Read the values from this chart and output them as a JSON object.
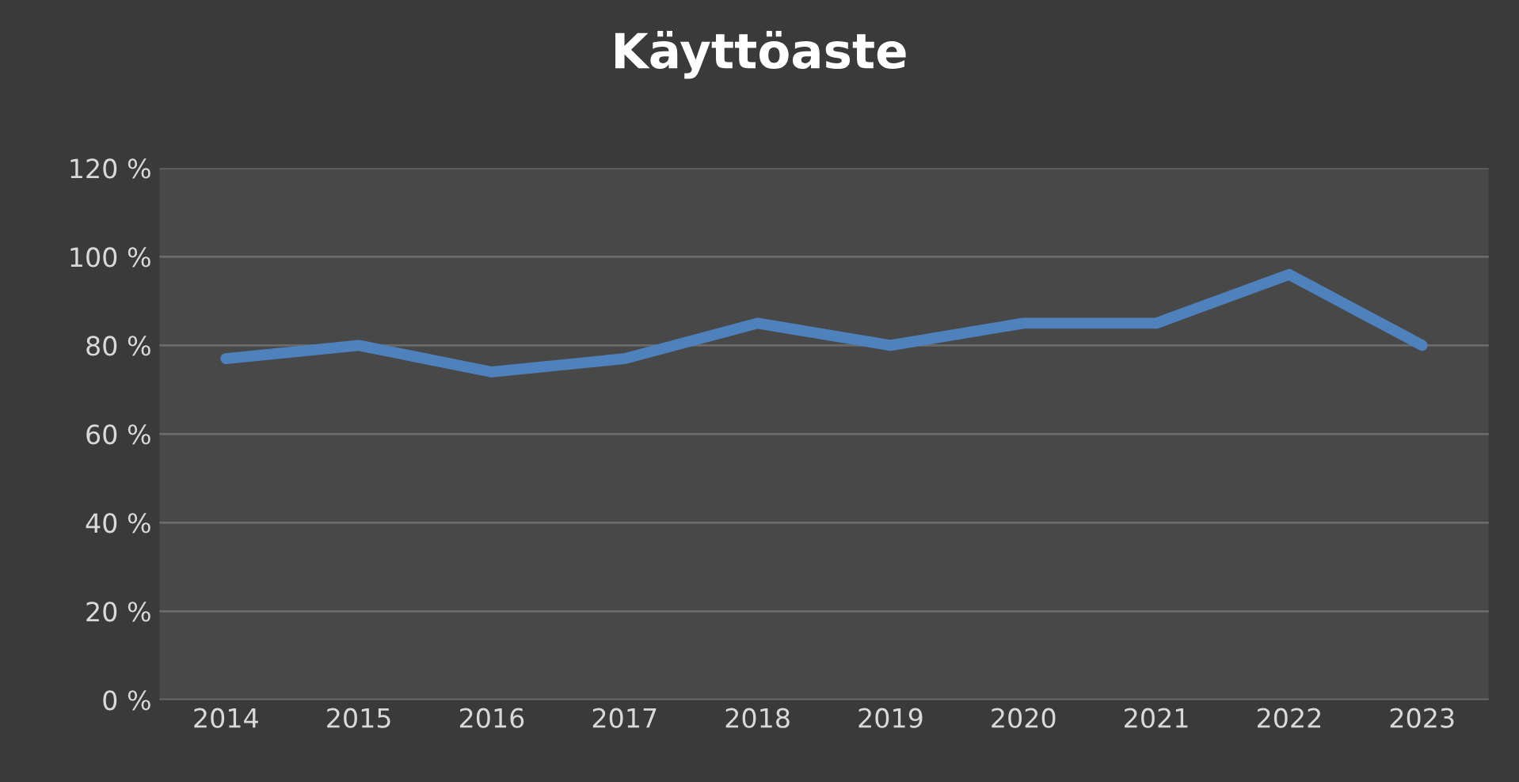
{
  "chart_data": {
    "type": "line",
    "title": "Käyttöaste",
    "categories": [
      "2014",
      "2015",
      "2016",
      "2017",
      "2018",
      "2019",
      "2020",
      "2021",
      "2022",
      "2023"
    ],
    "series": [
      {
        "color": "#4f81bd",
        "values": [
          77,
          80,
          74,
          77,
          85,
          80,
          85,
          85,
          96,
          80
        ]
      }
    ],
    "ylim": [
      0,
      120
    ],
    "yticks": [
      {
        "value": 0,
        "label": "0 %"
      },
      {
        "value": 20,
        "label": "20 %"
      },
      {
        "value": 40,
        "label": "40 %"
      },
      {
        "value": 60,
        "label": "60 %"
      },
      {
        "value": 80,
        "label": "80 %"
      },
      {
        "value": 100,
        "label": "100 %"
      },
      {
        "value": 120,
        "label": "120 %"
      }
    ],
    "grid": "y",
    "marker": "none",
    "line_style": "solid"
  }
}
